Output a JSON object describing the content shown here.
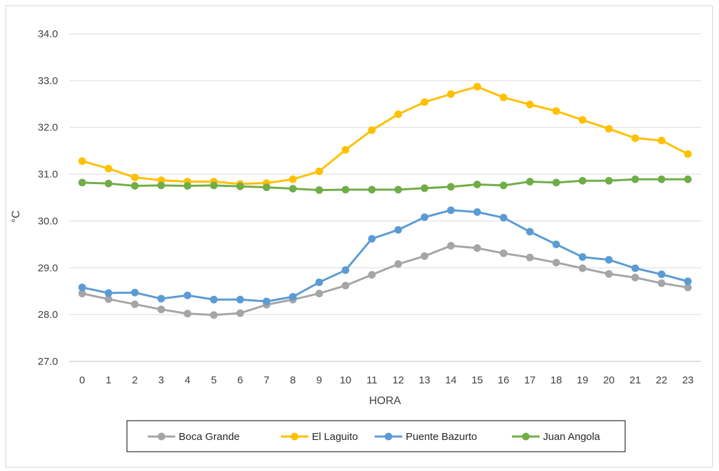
{
  "chart_data": {
    "type": "line",
    "title": "",
    "xlabel": "HORA",
    "ylabel": "°C",
    "x": [
      0,
      1,
      2,
      3,
      4,
      5,
      6,
      7,
      8,
      9,
      10,
      11,
      12,
      13,
      14,
      15,
      16,
      17,
      18,
      19,
      20,
      21,
      22,
      23
    ],
    "ylim": [
      27.0,
      34.0
    ],
    "yticks": [
      "27.0",
      "28.0",
      "29.0",
      "30.0",
      "31.0",
      "32.0",
      "33.0",
      "34.0"
    ],
    "grid": "horizontal",
    "legend_position": "bottom",
    "series": [
      {
        "name": "Boca Grande",
        "color": "#a5a5a5",
        "values": [
          28.45,
          28.33,
          28.22,
          28.11,
          28.02,
          27.99,
          28.03,
          28.21,
          28.32,
          28.45,
          28.62,
          28.85,
          29.08,
          29.25,
          29.47,
          29.42,
          29.31,
          29.22,
          29.11,
          28.99,
          28.87,
          28.79,
          28.67,
          28.58
        ]
      },
      {
        "name": "El Laguito",
        "color": "#ffc000",
        "values": [
          31.28,
          31.12,
          30.93,
          30.87,
          30.84,
          30.84,
          30.79,
          30.81,
          30.89,
          31.06,
          31.52,
          31.94,
          32.28,
          32.54,
          32.71,
          32.87,
          32.64,
          32.49,
          32.35,
          32.16,
          31.97,
          31.77,
          31.72,
          31.43
        ]
      },
      {
        "name": "Puente Bazurto",
        "color": "#5b9bd5",
        "values": [
          28.58,
          28.46,
          28.47,
          28.34,
          28.41,
          28.32,
          28.32,
          28.28,
          28.38,
          28.69,
          28.95,
          29.62,
          29.81,
          30.08,
          30.23,
          30.19,
          30.07,
          29.77,
          29.5,
          29.23,
          29.17,
          28.99,
          28.86,
          28.71
        ]
      },
      {
        "name": "Juan Angola",
        "color": "#70ad47",
        "values": [
          30.82,
          30.8,
          30.75,
          30.76,
          30.75,
          30.76,
          30.74,
          30.72,
          30.69,
          30.66,
          30.67,
          30.67,
          30.67,
          30.7,
          30.73,
          30.78,
          30.76,
          30.84,
          30.82,
          30.86,
          30.86,
          30.89,
          30.89,
          30.89
        ]
      }
    ]
  }
}
